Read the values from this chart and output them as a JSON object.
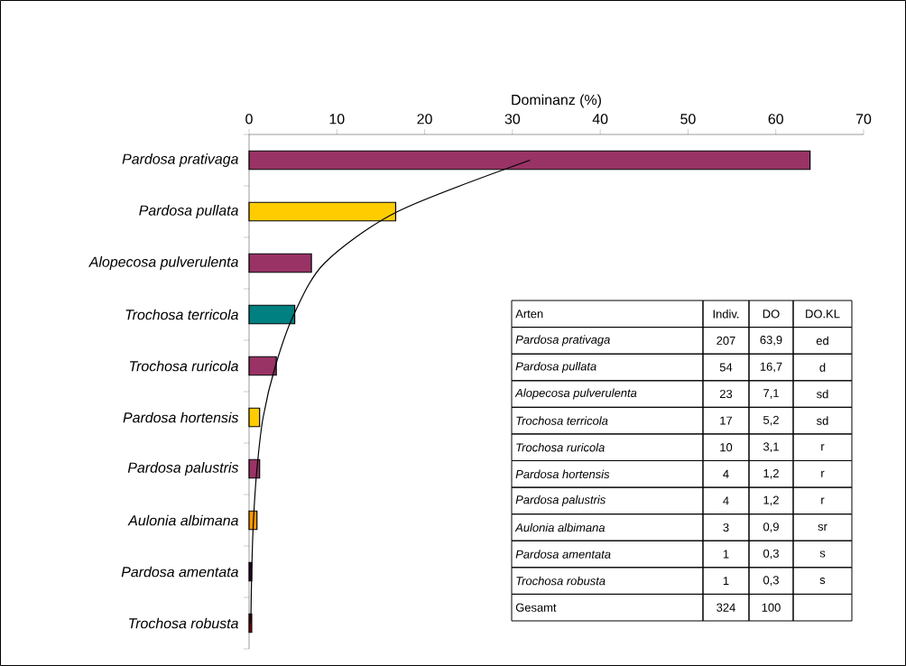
{
  "chart_data": {
    "type": "bar",
    "orientation": "horizontal",
    "xlabel": "Dominanz (%)",
    "categories": [
      "Pardosa prativaga",
      "Pardosa pullata",
      "Alopecosa pulverulenta",
      "Trochosa terricola",
      "Trochosa ruricola",
      "Pardosa hortensis",
      "Pardosa palustris",
      "Aulonia albimana",
      "Pardosa amentata",
      "Trochosa robusta"
    ],
    "xlim": [
      0,
      70
    ],
    "xticks": [
      0,
      10,
      20,
      30,
      40,
      50,
      60,
      70
    ],
    "marker": "none",
    "series": [
      {
        "type": "bar",
        "colors": [
          "#993366",
          "#ffcc00",
          "#993366",
          "#008080",
          "#993366",
          "#ffcc00",
          "#993366",
          "#ff9900",
          "#330033",
          "#800000"
        ],
        "values": [
          63.9,
          16.7,
          7.1,
          5.2,
          3.1,
          1.2,
          1.2,
          0.9,
          0.3,
          0.3
        ]
      },
      {
        "type": "line",
        "color": "#000000",
        "values": [
          32,
          16.9,
          8.6,
          5.1,
          3.0,
          1.6,
          0.9,
          0.5,
          0.3,
          0.2
        ]
      }
    ],
    "annotations": [
      "Arten",
      "Indiv.",
      "DO",
      "DO.KL",
      "207",
      "63,9",
      "ed",
      "54",
      "16,7",
      "d",
      "23",
      "7,1",
      "sd",
      "17",
      "5,2",
      "sd",
      "10",
      "3,1",
      "r",
      "4",
      "1,2",
      "r",
      "4",
      "1,2",
      "r",
      "3",
      "0,9",
      "sr",
      "1",
      "0,3",
      "s",
      "1",
      "0,3",
      "s",
      "Gesamt",
      "324",
      "100"
    ]
  }
}
